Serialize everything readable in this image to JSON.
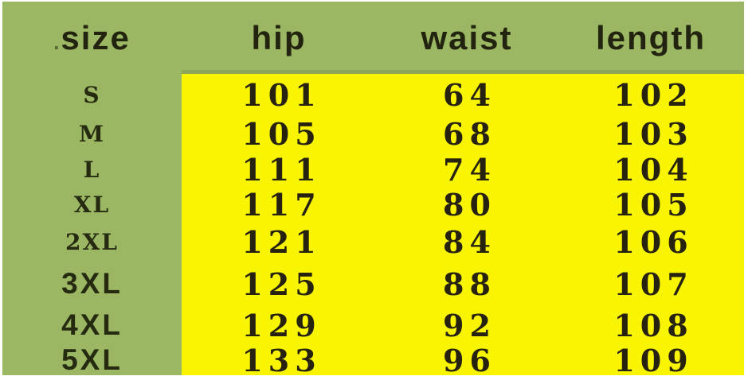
{
  "chart_data": {
    "type": "table",
    "columns": [
      "size",
      "hip",
      "waist",
      "length"
    ],
    "rows": [
      [
        "S",
        101,
        64,
        102
      ],
      [
        "M",
        105,
        68,
        103
      ],
      [
        "L",
        111,
        74,
        104
      ],
      [
        "XL",
        117,
        80,
        105
      ],
      [
        "2XL",
        121,
        84,
        106
      ],
      [
        "3XL",
        125,
        88,
        107
      ],
      [
        "4XL",
        129,
        92,
        108
      ],
      [
        "5XL",
        133,
        96,
        109
      ]
    ],
    "legend_position": "none",
    "grid": false
  },
  "table": {
    "size_header_dot": ".",
    "headers": {
      "size": "size",
      "hip": "hip",
      "waist": "waist",
      "length": "length"
    },
    "rows": [
      {
        "size": "S",
        "hip": "101",
        "waist": "64",
        "length": "102"
      },
      {
        "size": "M",
        "hip": "105",
        "waist": "68",
        "length": "103"
      },
      {
        "size": "L",
        "hip": "111",
        "waist": "74",
        "length": "104"
      },
      {
        "size": "XL",
        "hip": "117",
        "waist": "80",
        "length": "105"
      },
      {
        "size": "2XL",
        "hip": "121",
        "waist": "84",
        "length": "106"
      },
      {
        "size": "3XL",
        "hip": "125",
        "waist": "88",
        "length": "107"
      },
      {
        "size": "4XL",
        "hip": "129",
        "waist": "92",
        "length": "108"
      },
      {
        "size": "5XL",
        "hip": "133",
        "waist": "96",
        "length": "109"
      }
    ]
  },
  "colors": {
    "header_background": "#9cb763",
    "cell_background": "#f8f402",
    "header_divider": "#8da659",
    "text": "#23240f",
    "page_margin": "#ffffff"
  }
}
